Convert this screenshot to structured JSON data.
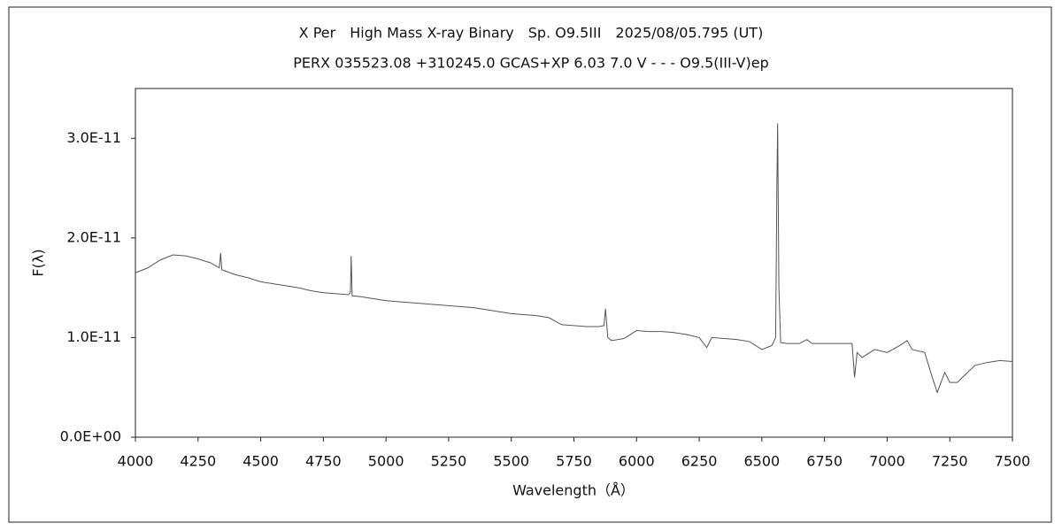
{
  "chart_data": {
    "type": "line",
    "title": "X Per　High Mass X-ray Binary　Sp. O9.5III　2025/08/05.795 (UT)",
    "subtitle": "PERX 035523.08 +310245.0 GCAS+XP 6.03 7.0 V - - - O9.5(III-V)ep",
    "x_label": "Wavelength（Å）",
    "y_label": "F(λ)",
    "xlim": [
      4000,
      7500
    ],
    "xticks": [
      4000,
      4250,
      4500,
      4750,
      5000,
      5250,
      5500,
      5750,
      6000,
      6250,
      6500,
      6750,
      7000,
      7250,
      7500
    ],
    "ylim": [
      0,
      3.5e-11
    ],
    "yticks": [
      {
        "value": 0,
        "label": "0.0E+00"
      },
      {
        "value": 1e-11,
        "label": "1.0E-11"
      },
      {
        "value": 2e-11,
        "label": "2.0E-11"
      },
      {
        "value": 3e-11,
        "label": "3.0E-11"
      }
    ],
    "grid": false,
    "color": "#555555",
    "x": [
      4000,
      4050,
      4100,
      4150,
      4200,
      4250,
      4300,
      4335,
      4340,
      4345,
      4400,
      4450,
      4500,
      4550,
      4600,
      4650,
      4700,
      4750,
      4800,
      4850,
      4858,
      4861,
      4865,
      4900,
      4950,
      5000,
      5050,
      5100,
      5150,
      5200,
      5250,
      5300,
      5350,
      5400,
      5450,
      5500,
      5550,
      5600,
      5650,
      5700,
      5750,
      5800,
      5850,
      5870,
      5876,
      5885,
      5900,
      5950,
      6000,
      6050,
      6100,
      6150,
      6200,
      6250,
      6280,
      6300,
      6350,
      6400,
      6450,
      6500,
      6540,
      6555,
      6560,
      6563,
      6568,
      6575,
      6600,
      6650,
      6680,
      6700,
      6750,
      6800,
      6860,
      6870,
      6880,
      6900,
      6950,
      7000,
      7050,
      7080,
      7100,
      7150,
      7180,
      7200,
      7230,
      7250,
      7280,
      7300,
      7350,
      7400,
      7450,
      7500
    ],
    "values": [
      1.65e-11,
      1.7e-11,
      1.78e-11,
      1.83e-11,
      1.82e-11,
      1.79e-11,
      1.75e-11,
      1.7e-11,
      1.85e-11,
      1.68e-11,
      1.63e-11,
      1.6e-11,
      1.56e-11,
      1.54e-11,
      1.52e-11,
      1.5e-11,
      1.47e-11,
      1.45e-11,
      1.44e-11,
      1.43e-11,
      1.45e-11,
      1.82e-11,
      1.42e-11,
      1.41e-11,
      1.39e-11,
      1.37e-11,
      1.36e-11,
      1.35e-11,
      1.34e-11,
      1.33e-11,
      1.32e-11,
      1.31e-11,
      1.3e-11,
      1.28e-11,
      1.26e-11,
      1.24e-11,
      1.23e-11,
      1.22e-11,
      1.2e-11,
      1.13e-11,
      1.12e-11,
      1.11e-11,
      1.11e-11,
      1.12e-11,
      1.29e-11,
      1e-11,
      9.7e-12,
      9.9e-12,
      1.07e-11,
      1.06e-11,
      1.06e-11,
      1.05e-11,
      1.03e-11,
      1e-11,
      9e-12,
      1e-11,
      9.9e-12,
      9.8e-12,
      9.6e-12,
      8.8e-12,
      9.2e-12,
      1e-11,
      2.55e-11,
      3.15e-11,
      1.5e-11,
      9.5e-12,
      9.4e-12,
      9.4e-12,
      9.8e-12,
      9.4e-12,
      9.4e-12,
      9.4e-12,
      9.4e-12,
      6e-12,
      8.5e-12,
      8e-12,
      8.8e-12,
      8.5e-12,
      9.2e-12,
      9.7e-12,
      8.8e-12,
      8.5e-12,
      6e-12,
      4.5e-12,
      6.5e-12,
      5.5e-12,
      5.5e-12,
      6e-12,
      7.2e-12,
      7.5e-12,
      7.7e-12,
      7.6e-12
    ]
  }
}
